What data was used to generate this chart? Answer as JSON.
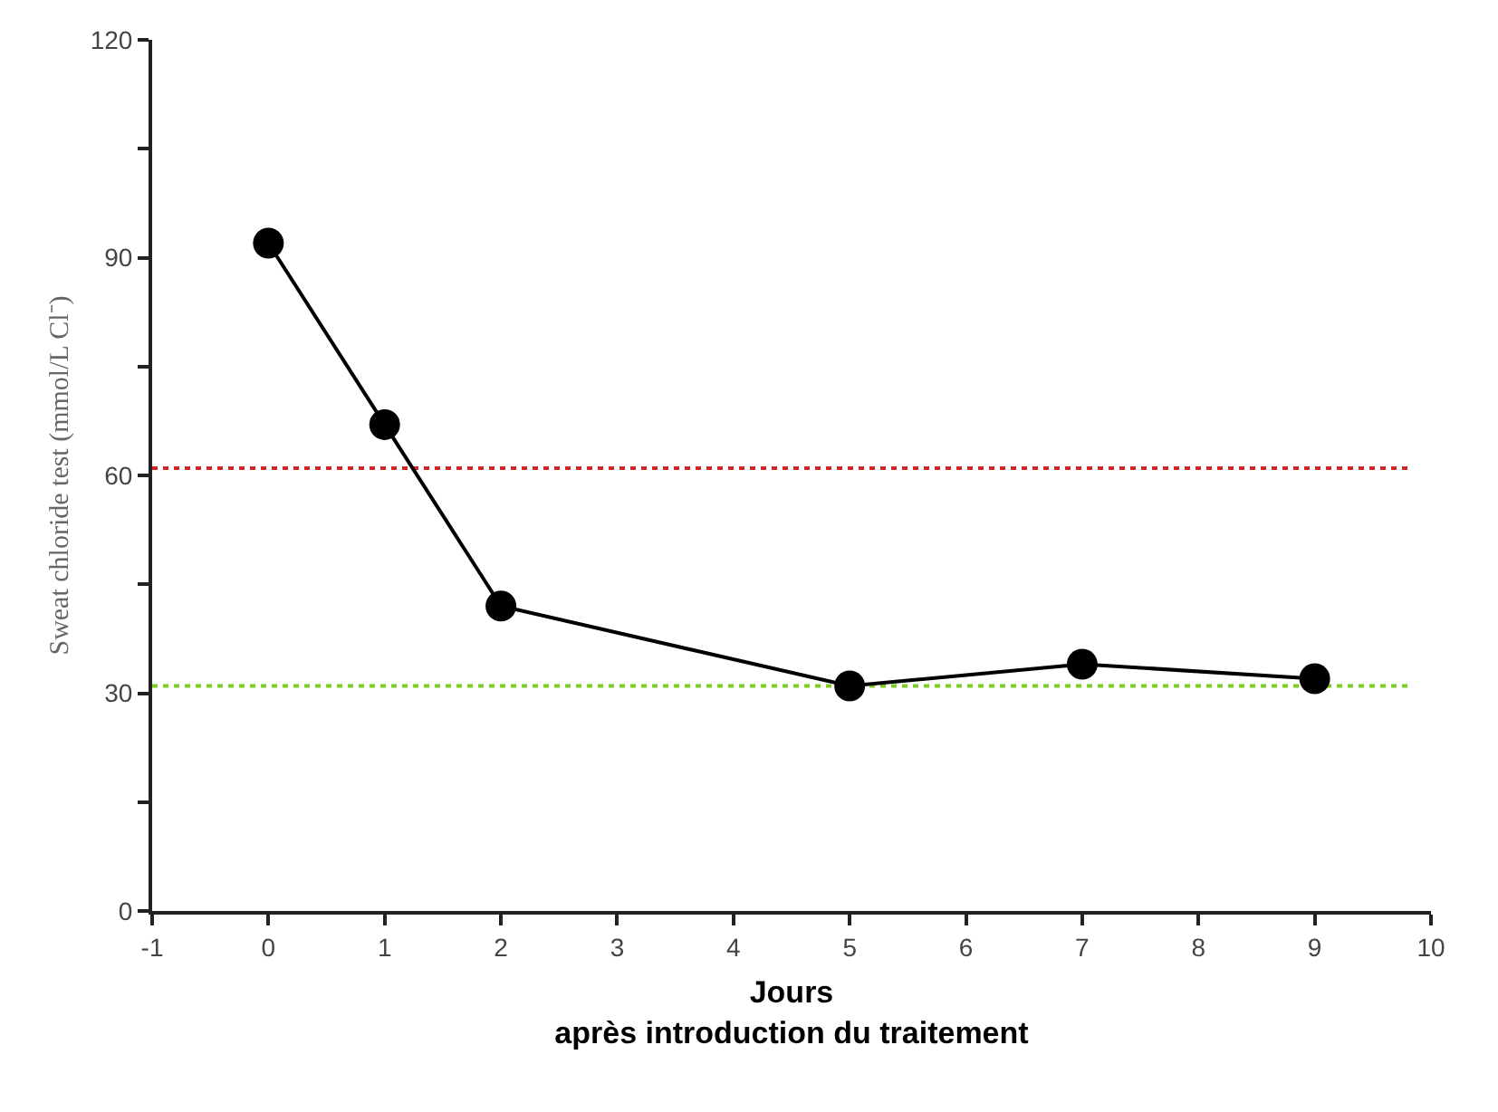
{
  "chart_data": {
    "type": "line",
    "ylabel": "Sweat chloride test (mmol/L Cl⁻)",
    "xlabel": "Jours\naprès introduction du traitement",
    "x": [
      0,
      1,
      2,
      5,
      7,
      9
    ],
    "series": [
      {
        "color": "#000000",
        "values": [
          92,
          67,
          42,
          31,
          34,
          32
        ]
      }
    ],
    "marker": "circle",
    "line_style": "solid",
    "xlim": [
      -1,
      10
    ],
    "xticks": [
      -1,
      0,
      1,
      2,
      3,
      4,
      5,
      6,
      7,
      8,
      9,
      10
    ],
    "ylim": [
      0,
      120
    ],
    "yticks": [
      0,
      {
        "value": 15,
        "label": null
      },
      30,
      {
        "value": 45,
        "label": null
      },
      60,
      {
        "value": 75,
        "label": null
      },
      90,
      {
        "value": 105,
        "label": null
      },
      120
    ],
    "ref_lines": [
      {
        "axis": "y",
        "value": 61,
        "color": "#d62728",
        "line_style": "dotted"
      },
      {
        "axis": "y",
        "value": 31,
        "color": "#7ccd22",
        "line_style": "dotted"
      }
    ],
    "grid": false
  }
}
